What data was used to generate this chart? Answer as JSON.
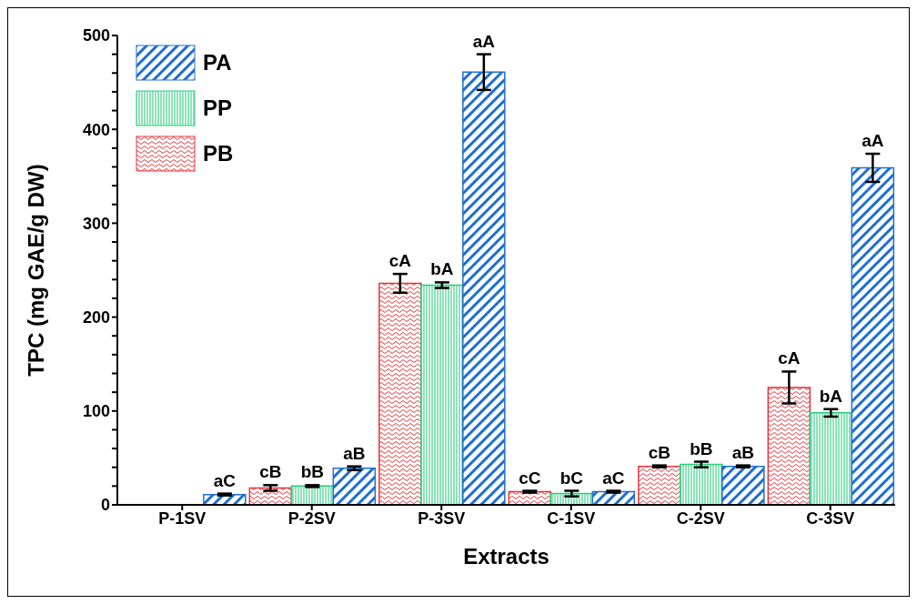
{
  "chart_data": {
    "type": "bar",
    "xlabel": "Extracts",
    "ylabel": "TPC (mg GAE/g DW)",
    "categories": [
      "P-1SV",
      "P-2SV",
      "P-3SV",
      "C-1SV",
      "C-2SV",
      "C-3SV"
    ],
    "series": [
      {
        "name": "PB",
        "color": "#e8343a",
        "values": [
          null,
          18,
          236,
          14,
          41,
          125
        ],
        "errors": [
          null,
          3,
          10,
          1,
          1,
          17
        ],
        "value_labels": [
          null,
          "cB",
          "cA",
          "cC",
          "cB",
          "cA"
        ]
      },
      {
        "name": "PP",
        "color": "#2ecc80",
        "values": [
          null,
          20,
          234,
          12,
          43,
          98
        ],
        "errors": [
          null,
          1,
          3,
          3,
          3,
          4
        ],
        "value_labels": [
          null,
          "bB",
          "bA",
          "bC",
          "bB",
          "bA"
        ]
      },
      {
        "name": "PA",
        "color": "#1f6fd0",
        "values": [
          11,
          39,
          461,
          14,
          41,
          359
        ],
        "errors": [
          1,
          2,
          19,
          1,
          1,
          15
        ],
        "value_labels": [
          "aC",
          "aB",
          "aA",
          "aC",
          "aB",
          "aA"
        ]
      }
    ],
    "ylim": [
      0,
      500
    ],
    "yticks": [
      0,
      {
        "value": 20,
        "label": null
      },
      {
        "value": 40,
        "label": null
      },
      {
        "value": 60,
        "label": null
      },
      {
        "value": 80,
        "label": null
      },
      100,
      {
        "value": 120,
        "label": null
      },
      {
        "value": 140,
        "label": null
      },
      {
        "value": 160,
        "label": null
      },
      {
        "value": 180,
        "label": null
      },
      200,
      {
        "value": 220,
        "label": null
      },
      {
        "value": 240,
        "label": null
      },
      {
        "value": 260,
        "label": null
      },
      {
        "value": 280,
        "label": null
      },
      300,
      {
        "value": 320,
        "label": null
      },
      {
        "value": 340,
        "label": null
      },
      {
        "value": 360,
        "label": null
      },
      {
        "value": 380,
        "label": null
      },
      400,
      {
        "value": 420,
        "label": null
      },
      {
        "value": 440,
        "label": null
      },
      {
        "value": 460,
        "label": null
      },
      {
        "value": 480,
        "label": null
      },
      500
    ],
    "grid": false,
    "legend": "top left"
  }
}
